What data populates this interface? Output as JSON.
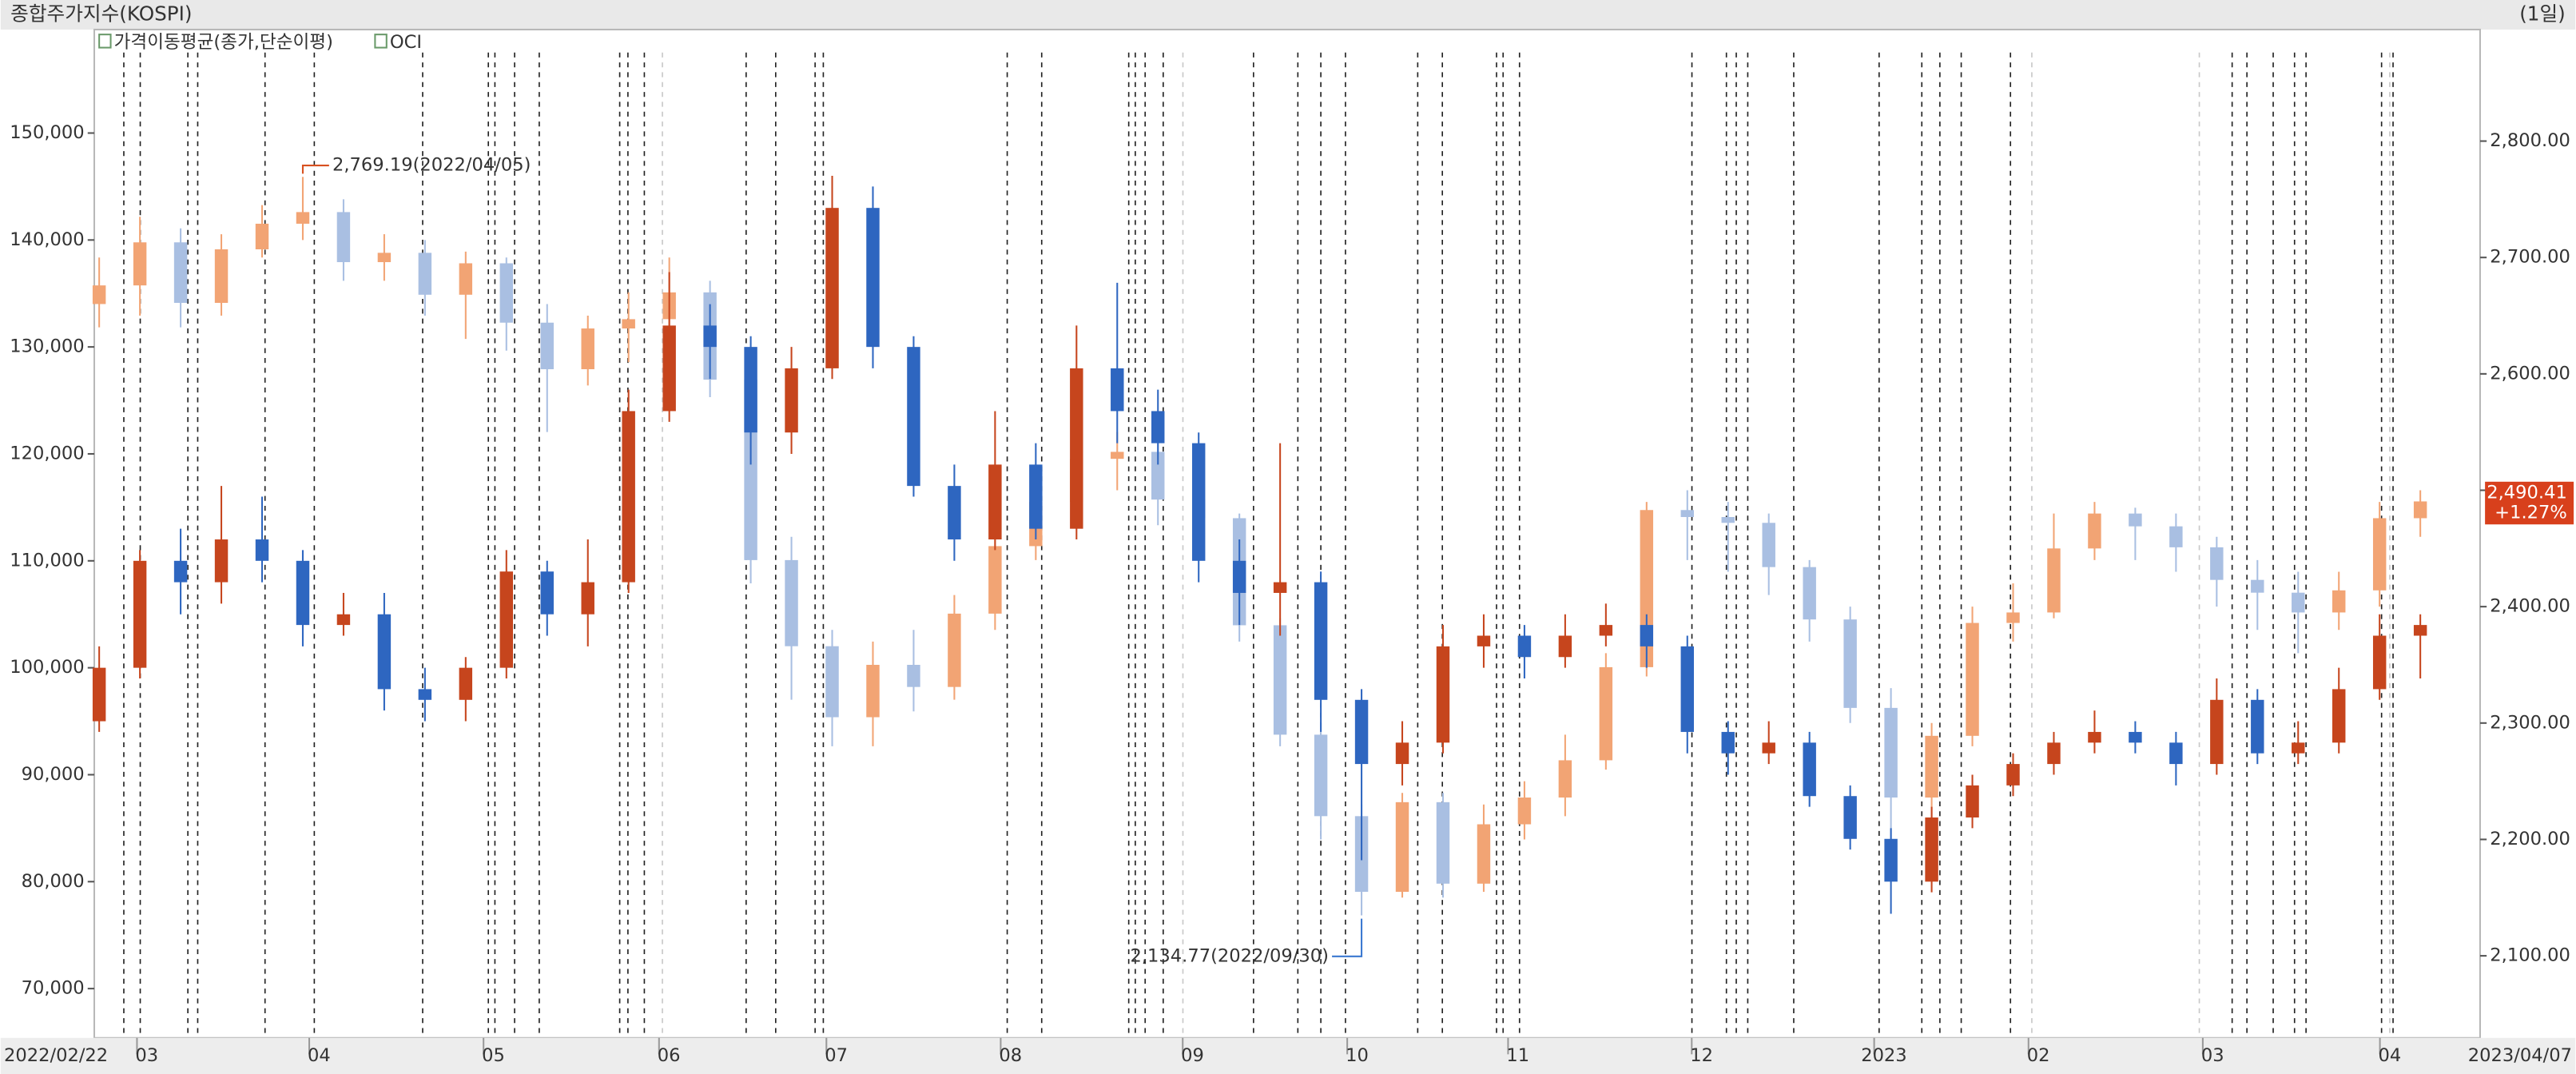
{
  "chart_data": {
    "type": "candlestick",
    "title": "종합주가지수(KOSPI)",
    "period_label": "(1일)",
    "moving_average_label": "가격이동평균(종가,단순이평)",
    "x_range": [
      "2022/02/22",
      "2023/04/07"
    ],
    "categories": [
      null,
      null,
      null,
      null,
      null,
      null,
      null,
      null,
      null,
      null,
      null,
      null,
      null,
      null,
      null,
      null,
      null,
      null,
      null,
      null,
      null,
      null,
      null,
      null,
      null,
      null,
      null,
      null,
      null,
      null,
      null,
      null,
      null,
      null,
      null,
      null,
      null,
      null,
      null,
      null,
      null,
      null,
      null,
      null,
      null,
      null,
      null,
      null,
      null,
      null,
      null,
      null,
      null,
      null,
      null,
      null,
      null,
      null
    ],
    "xticks": [
      {
        "value": 1.17,
        "label": "03"
      },
      {
        "value": 5.4,
        "label": "04"
      },
      {
        "value": 9.68,
        "label": "05"
      },
      {
        "value": 13.99,
        "label": "06"
      },
      {
        "value": 18.1,
        "label": "07"
      },
      {
        "value": 22.38,
        "label": "08"
      },
      {
        "value": 26.85,
        "label": "09"
      },
      {
        "value": 30.89,
        "label": "10"
      },
      {
        "value": 34.84,
        "label": "11"
      },
      {
        "value": 39.35,
        "label": "12"
      },
      {
        "value": 43.83,
        "label": "2023"
      },
      {
        "value": 47.62,
        "label": "02"
      },
      {
        "value": 51.9,
        "label": "03"
      },
      {
        "value": 56.25,
        "label": "04"
      }
    ],
    "ylim": [
      65392,
      159370
    ],
    "yticks": [
      {
        "value": 70000,
        "label": "70,000"
      },
      {
        "value": 80000,
        "label": "80,000"
      },
      {
        "value": 90000,
        "label": "90,000"
      },
      {
        "value": 100000,
        "label": "100,000"
      },
      {
        "value": 110000,
        "label": "110,000"
      },
      {
        "value": 120000,
        "label": "120,000"
      },
      {
        "value": 130000,
        "label": "130,000"
      },
      {
        "value": 140000,
        "label": "140,000"
      },
      {
        "value": 150000,
        "label": "150,000"
      }
    ],
    "y2lim": [
      2029.5,
      2893
    ],
    "y2ticks": [
      {
        "value": 2100,
        "label": "2,100.00"
      },
      {
        "value": 2200,
        "label": "2,200.00"
      },
      {
        "value": 2300,
        "label": "2,300.00"
      },
      {
        "value": 2400,
        "label": "2,400.00"
      },
      {
        "value": 2500,
        "label": "2,500.00"
      },
      {
        "value": 2600,
        "label": "2,600.00"
      },
      {
        "value": 2700,
        "label": "2,700.00"
      },
      {
        "value": 2800,
        "label": "2,800.00"
      }
    ],
    "series": [
      {
        "axis": "y2",
        "up_color": "#f2a474",
        "down_color": "#a9bfe2",
        "open": [
          2660,
          2676,
          2713,
          2661,
          2707,
          2729,
          2739,
          2696,
          2704,
          2668,
          2695,
          2644,
          2604,
          2639,
          2647,
          2670,
          2595,
          2440,
          2366,
          2305,
          2350,
          2331,
          2394,
          2452,
          2490,
          2527,
          2533,
          2492,
          2476,
          2384,
          2290,
          2220,
          2155,
          2232,
          2162,
          2213,
          2236,
          2268,
          2348,
          2483,
          2477,
          2472,
          2434,
          2389,
          2313,
          2236,
          2289,
          2386,
          2395,
          2450,
          2480,
          2469,
          2451,
          2423,
          2412,
          2395,
          2414,
          2476
        ],
        "high": [
          2700,
          2735,
          2725,
          2720,
          2745,
          2769.19,
          2750,
          2720,
          2715,
          2705,
          2700,
          2660,
          2650,
          2670,
          2700,
          2680,
          2600,
          2460,
          2380,
          2370,
          2380,
          2410,
          2460,
          2500,
          2540,
          2550,
          2540,
          2500,
          2480,
          2390,
          2300,
          2230,
          2240,
          2240,
          2230,
          2250,
          2290,
          2360,
          2490,
          2500,
          2490,
          2480,
          2440,
          2400,
          2330,
          2300,
          2400,
          2420,
          2480,
          2490,
          2485,
          2480,
          2460,
          2440,
          2430,
          2430,
          2490,
          2500
        ],
        "low": [
          2640,
          2650,
          2640,
          2650,
          2700,
          2715,
          2680,
          2680,
          2650,
          2630,
          2620,
          2550,
          2590,
          2610,
          2630,
          2580,
          2420,
          2320,
          2280,
          2280,
          2310,
          2320,
          2380,
          2440,
          2480,
          2500,
          2470,
          2440,
          2370,
          2280,
          2200,
          2134.77,
          2150,
          2150,
          2155,
          2200,
          2220,
          2260,
          2340,
          2440,
          2430,
          2410,
          2370,
          2300,
          2180,
          2180,
          2280,
          2370,
          2390,
          2440,
          2440,
          2430,
          2400,
          2380,
          2360,
          2380,
          2400,
          2460
        ],
        "close": [
          2676,
          2713,
          2661,
          2707,
          2729,
          2739,
          2696,
          2704,
          2668,
          2695,
          2644,
          2604,
          2639,
          2647,
          2670,
          2595,
          2440,
          2366,
          2305,
          2350,
          2331,
          2394,
          2452,
          2490,
          2527,
          2533,
          2492,
          2476,
          2384,
          2290,
          2220,
          2155,
          2232,
          2162,
          2213,
          2236,
          2268,
          2348,
          2483,
          2477,
          2472,
          2434,
          2389,
          2313,
          2236,
          2289,
          2386,
          2395,
          2450,
          2480,
          2469,
          2451,
          2423,
          2412,
          2395,
          2414,
          2476,
          2490.41
        ],
        "last_label": "2,490.41",
        "change_label": "+1.27%",
        "last_color": "#d8401c",
        "annotations": [
          {
            "text": "2,769.19(2022/04/05)",
            "color": "#d8501f"
          },
          {
            "text": "2,134.77(2022/09/30)",
            "color": "#3a78d0"
          }
        ]
      },
      {
        "name": "OCI",
        "axis": "y",
        "up_color": "#c6451d",
        "down_color": "#2e66c0",
        "open": [
          95000,
          100000,
          110000,
          108000,
          112000,
          110000,
          104000,
          105000,
          98000,
          97000,
          100000,
          109000,
          105000,
          108000,
          124000,
          132000,
          130000,
          122000,
          128000,
          143000,
          130000,
          117000,
          112000,
          119000,
          113000,
          128000,
          124000,
          121000,
          110000,
          107000,
          108000,
          97000,
          91000,
          93000,
          102000,
          103000,
          101000,
          103000,
          104000,
          102000,
          94000,
          92000,
          93000,
          88000,
          84000,
          80000,
          86000,
          89000,
          91000,
          93000,
          94000,
          93000,
          91000,
          97000,
          92000,
          93000,
          98000,
          103000
        ],
        "high": [
          102000,
          111000,
          113000,
          117000,
          116000,
          111000,
          107000,
          107000,
          100000,
          101000,
          111000,
          110000,
          112000,
          126000,
          137000,
          134000,
          131000,
          130000,
          146000,
          145000,
          131000,
          119000,
          124000,
          121000,
          132000,
          136000,
          126000,
          122000,
          112000,
          121000,
          109000,
          98000,
          95000,
          104000,
          105000,
          104000,
          105000,
          106000,
          105000,
          103000,
          95000,
          95000,
          94000,
          89000,
          85000,
          87000,
          90000,
          92000,
          94000,
          96000,
          95000,
          94000,
          99000,
          98000,
          95000,
          100000,
          105000,
          105000
        ],
        "low": [
          94000,
          99000,
          105000,
          106000,
          108000,
          102000,
          103000,
          96000,
          95000,
          95000,
          99000,
          103000,
          102000,
          107000,
          123000,
          127000,
          119000,
          120000,
          127000,
          128000,
          116000,
          110000,
          111000,
          112000,
          112000,
          121000,
          119000,
          108000,
          104000,
          103000,
          94000,
          82000,
          89000,
          92000,
          100000,
          99000,
          100000,
          102000,
          100000,
          92000,
          90000,
          91000,
          87000,
          83000,
          77000,
          79000,
          85000,
          88000,
          90000,
          92000,
          92000,
          89000,
          90000,
          91000,
          91000,
          92000,
          97000,
          99000
        ],
        "close": [
          100000,
          110000,
          108000,
          112000,
          110000,
          104000,
          105000,
          98000,
          97000,
          100000,
          109000,
          105000,
          108000,
          124000,
          132000,
          130000,
          122000,
          128000,
          143000,
          130000,
          117000,
          112000,
          119000,
          113000,
          128000,
          124000,
          121000,
          110000,
          107000,
          108000,
          97000,
          91000,
          93000,
          102000,
          103000,
          101000,
          103000,
          104000,
          102000,
          94000,
          92000,
          93000,
          88000,
          84000,
          80000,
          86000,
          89000,
          91000,
          93000,
          94000,
          93000,
          91000,
          97000,
          92000,
          93000,
          98000,
          103000,
          104000
        ]
      }
    ]
  }
}
